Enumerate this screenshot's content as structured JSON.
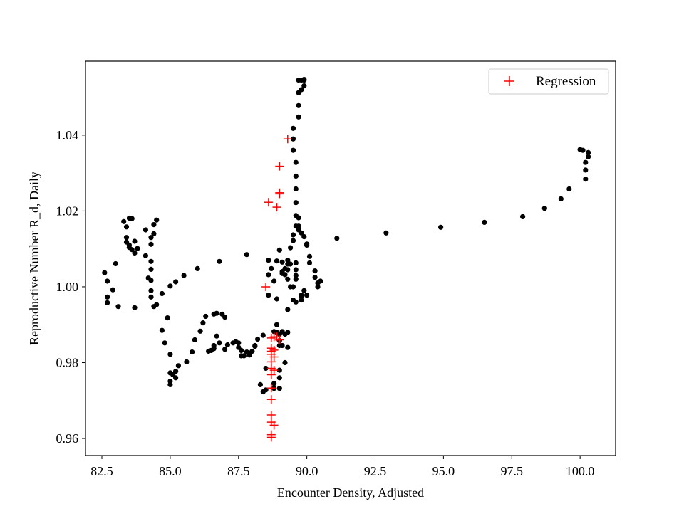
{
  "chart_data": {
    "type": "scatter",
    "title": "",
    "xlabel": "Encounter Density, Adjusted",
    "ylabel": "Reproductive Number R_d, Daily",
    "xlim": [
      81.9,
      101.3
    ],
    "ylim": [
      0.9555,
      1.0595
    ],
    "xticks": [
      82.5,
      85.0,
      87.5,
      90.0,
      92.5,
      95.0,
      97.5,
      100.0
    ],
    "xtick_labels": [
      "82.5",
      "85.0",
      "87.5",
      "90.0",
      "92.5",
      "95.0",
      "97.5",
      "100.0"
    ],
    "yticks": [
      0.96,
      0.98,
      1.0,
      1.02,
      1.04
    ],
    "ytick_labels": [
      "0.96",
      "0.98",
      "1.00",
      "1.02",
      "1.04"
    ],
    "grid": false,
    "legend": {
      "position": "top-right",
      "entries": [
        "Regression"
      ]
    },
    "series": [
      {
        "marker": "dot",
        "color": "#000000",
        "points": [
          [
            82.6,
            1.0037
          ],
          [
            82.7,
            1.0015
          ],
          [
            82.7,
            0.9973
          ],
          [
            82.7,
            0.9958
          ],
          [
            82.9,
            0.9992
          ],
          [
            83.0,
            1.0061
          ],
          [
            83.1,
            0.9948
          ],
          [
            83.3,
            1.0172
          ],
          [
            83.4,
            1.0158
          ],
          [
            83.4,
            1.0118
          ],
          [
            83.4,
            1.013
          ],
          [
            83.5,
            1.0181
          ],
          [
            83.5,
            1.011
          ],
          [
            83.5,
            1.0104
          ],
          [
            83.6,
            1.0098
          ],
          [
            83.6,
            1.018
          ],
          [
            83.7,
            1.0089
          ],
          [
            83.7,
            1.012
          ],
          [
            83.7,
            0.9945
          ],
          [
            83.8,
            1.0101
          ],
          [
            84.1,
            1.015
          ],
          [
            84.1,
            1.0082
          ],
          [
            84.3,
            1.013
          ],
          [
            84.3,
            1.0112
          ],
          [
            84.3,
            1.0046
          ],
          [
            84.2,
            1.0023
          ],
          [
            84.3,
            1.0067
          ],
          [
            84.3,
            1.0017
          ],
          [
            84.3,
            0.999
          ],
          [
            84.3,
            0.9973
          ],
          [
            84.4,
            1.0164
          ],
          [
            84.4,
            1.014
          ],
          [
            84.4,
            0.9948
          ],
          [
            84.5,
            1.0176
          ],
          [
            84.5,
            0.9953
          ],
          [
            84.7,
            0.9982
          ],
          [
            84.7,
            0.9885
          ],
          [
            84.8,
            0.9852
          ],
          [
            84.9,
            0.9918
          ],
          [
            85.0,
            1.0002
          ],
          [
            85.0,
            0.9822
          ],
          [
            85.0,
            0.9773
          ],
          [
            85.0,
            0.9751
          ],
          [
            85.0,
            0.9742
          ],
          [
            85.1,
            0.9768
          ],
          [
            85.2,
            1.0013
          ],
          [
            85.2,
            0.9777
          ],
          [
            85.2,
            0.976
          ],
          [
            85.3,
            0.9792
          ],
          [
            85.5,
            1.003
          ],
          [
            85.6,
            0.9802
          ],
          [
            85.8,
            0.9828
          ],
          [
            85.9,
            0.986
          ],
          [
            86.0,
            1.0048
          ],
          [
            86.1,
            0.9883
          ],
          [
            86.2,
            0.9905
          ],
          [
            86.3,
            0.9922
          ],
          [
            86.4,
            0.983
          ],
          [
            86.5,
            0.9832
          ],
          [
            86.6,
            0.9837
          ],
          [
            86.6,
            0.9928
          ],
          [
            86.6,
            0.9845
          ],
          [
            86.7,
            0.993
          ],
          [
            86.7,
            0.987
          ],
          [
            86.8,
            0.9852
          ],
          [
            86.8,
            1.0067
          ],
          [
            86.9,
            0.9928
          ],
          [
            87.0,
            0.992
          ],
          [
            87.0,
            0.9835
          ],
          [
            87.1,
            0.9847
          ],
          [
            87.3,
            0.9852
          ],
          [
            87.4,
            0.9855
          ],
          [
            87.5,
            0.9852
          ],
          [
            87.5,
            0.984
          ],
          [
            87.6,
            0.9832
          ],
          [
            87.6,
            0.9818
          ],
          [
            87.7,
            0.9818
          ],
          [
            87.8,
            0.9828
          ],
          [
            87.8,
            1.0085
          ],
          [
            87.9,
            0.982
          ],
          [
            87.9,
            0.9825
          ],
          [
            88.0,
            0.983
          ],
          [
            88.1,
            0.9845
          ],
          [
            88.1,
            0.9843
          ],
          [
            88.2,
            0.9862
          ],
          [
            88.3,
            0.9742
          ],
          [
            88.4,
            0.9723
          ],
          [
            88.4,
            0.9872
          ],
          [
            88.5,
            0.9728
          ],
          [
            88.5,
            0.9785
          ],
          [
            88.6,
            1.007
          ],
          [
            88.6,
            1.0032
          ],
          [
            88.6,
            0.9978
          ],
          [
            88.7,
            1.0048
          ],
          [
            88.8,
            0.9745
          ],
          [
            88.8,
            0.9732
          ],
          [
            88.8,
            1.0015
          ],
          [
            88.8,
            0.9882
          ],
          [
            88.9,
            0.988
          ],
          [
            88.9,
            0.99
          ],
          [
            88.9,
            1.0068
          ],
          [
            88.9,
            0.9968
          ],
          [
            89.0,
            0.978
          ],
          [
            89.0,
            0.976
          ],
          [
            89.0,
            0.9732
          ],
          [
            89.0,
            0.9875
          ],
          [
            89.0,
            0.9845
          ],
          [
            89.0,
            0.9858
          ],
          [
            89.1,
            0.9882
          ],
          [
            89.0,
            1.0097
          ],
          [
            89.1,
            1.0065
          ],
          [
            89.1,
            1.004
          ],
          [
            89.1,
            1.0035
          ],
          [
            89.1,
            0.9845
          ],
          [
            89.2,
            1.0048
          ],
          [
            89.2,
            1.0032
          ],
          [
            89.2,
            0.98
          ],
          [
            89.2,
            0.9875
          ],
          [
            89.3,
            0.984
          ],
          [
            89.3,
            1.007
          ],
          [
            89.3,
            1.006
          ],
          [
            89.3,
            1.0045
          ],
          [
            89.3,
            1.002
          ],
          [
            89.3,
            0.988
          ],
          [
            89.3,
            0.994
          ],
          [
            89.4,
            1.0103
          ],
          [
            89.4,
            1.006
          ],
          [
            89.4,
            1.0
          ],
          [
            89.5,
            1.0137
          ],
          [
            89.5,
            1.0122
          ],
          [
            89.5,
            1.0
          ],
          [
            89.5,
            1.036
          ],
          [
            89.5,
            1.039
          ],
          [
            89.5,
            1.0418
          ],
          [
            89.5,
            0.9965
          ],
          [
            89.6,
            1.0045
          ],
          [
            89.6,
            1.0063
          ],
          [
            89.6,
            1.003
          ],
          [
            89.6,
            1.002
          ],
          [
            89.6,
            1.016
          ],
          [
            89.6,
            1.0188
          ],
          [
            89.6,
            1.0222
          ],
          [
            89.6,
            1.0258
          ],
          [
            89.6,
            1.0292
          ],
          [
            89.6,
            1.0328
          ],
          [
            89.6,
            0.996
          ],
          [
            89.7,
            1.016
          ],
          [
            89.7,
            1.015
          ],
          [
            89.7,
            1.0182
          ],
          [
            89.7,
            1.0448
          ],
          [
            89.7,
            1.0478
          ],
          [
            89.7,
            1.0512
          ],
          [
            89.7,
            1.0545
          ],
          [
            89.8,
            1.0545
          ],
          [
            89.8,
            1.052
          ],
          [
            89.8,
            1.0142
          ],
          [
            89.8,
            0.9975
          ],
          [
            89.8,
            0.9965
          ],
          [
            89.8,
            0.9978
          ],
          [
            89.9,
            1.0547
          ],
          [
            89.9,
            1.053
          ],
          [
            89.9,
            1.0545
          ],
          [
            89.9,
            1.0132
          ],
          [
            89.9,
            0.999
          ],
          [
            90.0,
            1.0113
          ],
          [
            90.0,
            0.9978
          ],
          [
            90.0,
            1.011
          ],
          [
            90.1,
            1.008
          ],
          [
            90.1,
            1.0063
          ],
          [
            90.3,
            1.0042
          ],
          [
            90.3,
            1.0025
          ],
          [
            90.4,
            1.001
          ],
          [
            90.4,
            1.0
          ],
          [
            90.5,
            1.0015
          ],
          [
            91.1,
            1.0128
          ],
          [
            92.9,
            1.0142
          ],
          [
            94.9,
            1.0157
          ],
          [
            96.5,
            1.017
          ],
          [
            97.9,
            1.0185
          ],
          [
            98.7,
            1.0207
          ],
          [
            99.3,
            1.0232
          ],
          [
            99.6,
            1.0258
          ],
          [
            100.0,
            1.0362
          ],
          [
            100.1,
            1.036
          ],
          [
            100.2,
            1.0328
          ],
          [
            100.2,
            1.0308
          ],
          [
            100.2,
            1.0284
          ],
          [
            100.3,
            1.0354
          ],
          [
            100.3,
            1.0343
          ]
        ]
      },
      {
        "name": "Regression",
        "marker": "plus",
        "color": "#ff0000",
        "points": [
          [
            88.5,
            1.0
          ],
          [
            88.6,
            1.0223
          ],
          [
            88.9,
            1.021
          ],
          [
            89.0,
            1.0245
          ],
          [
            89.0,
            1.0248
          ],
          [
            89.0,
            1.0318
          ],
          [
            89.3,
            1.039
          ],
          [
            88.7,
            0.9865
          ],
          [
            88.8,
            0.9868
          ],
          [
            88.9,
            0.9868
          ],
          [
            89.0,
            0.986
          ],
          [
            88.7,
            0.9838
          ],
          [
            88.7,
            0.983
          ],
          [
            88.8,
            0.9833
          ],
          [
            88.7,
            0.9822
          ],
          [
            88.8,
            0.9815
          ],
          [
            88.7,
            0.9802
          ],
          [
            88.7,
            0.9785
          ],
          [
            88.8,
            0.978
          ],
          [
            88.7,
            0.9768
          ],
          [
            88.7,
            0.9733
          ],
          [
            88.7,
            0.9703
          ],
          [
            88.7,
            0.9662
          ],
          [
            88.7,
            0.9643
          ],
          [
            88.8,
            0.9635
          ],
          [
            88.7,
            0.961
          ],
          [
            88.7,
            0.9603
          ]
        ]
      }
    ]
  }
}
